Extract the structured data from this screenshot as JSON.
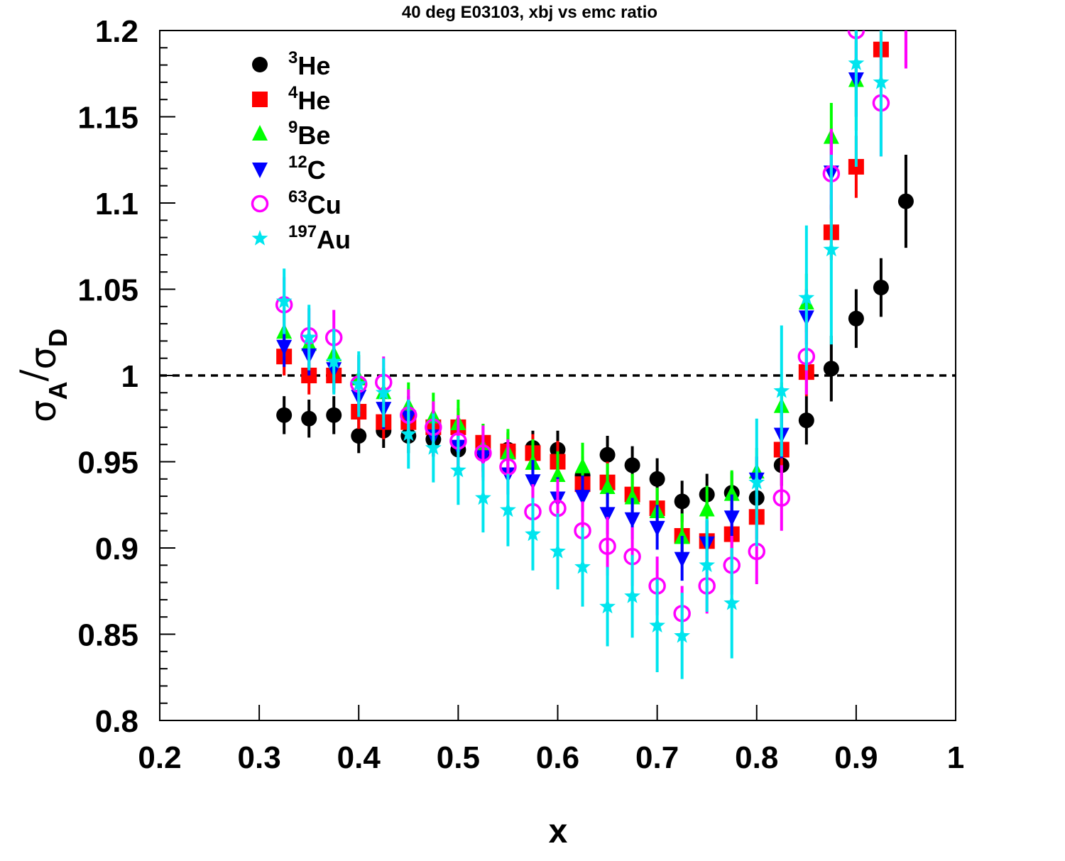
{
  "chart_data": {
    "type": "scatter",
    "title": "40 deg E03103, xbj vs emc ratio",
    "xlabel": "x",
    "ylabel": {
      "base": "σ",
      "num_sub": "A",
      "slash": "/",
      "den_sub": "D"
    },
    "xlim": [
      0.2,
      1.0
    ],
    "ylim": [
      0.8,
      1.2
    ],
    "xticks": [
      "0.2",
      "0.3",
      "0.4",
      "0.5",
      "0.6",
      "0.7",
      "0.8",
      "0.9",
      "1"
    ],
    "yticks": [
      "0.8",
      "0.85",
      "0.9",
      "0.95",
      "1",
      "1.05",
      "1.1",
      "1.15",
      "1.2"
    ],
    "reference_line": {
      "y": 1.0,
      "style": "dashed"
    },
    "legend_position": "top-left",
    "series": [
      {
        "name": {
          "sup": "3",
          "text": "He"
        },
        "marker": "circle-filled",
        "color": "#000000",
        "x": [
          0.325,
          0.35,
          0.375,
          0.4,
          0.425,
          0.45,
          0.475,
          0.5,
          0.525,
          0.55,
          0.575,
          0.6,
          0.625,
          0.65,
          0.675,
          0.7,
          0.725,
          0.75,
          0.775,
          0.8,
          0.825,
          0.85,
          0.875,
          0.9,
          0.925,
          0.95
        ],
        "y": [
          0.977,
          0.975,
          0.977,
          0.965,
          0.968,
          0.965,
          0.963,
          0.957,
          0.955,
          0.957,
          0.958,
          0.957,
          0.942,
          0.954,
          0.948,
          0.94,
          0.927,
          0.931,
          0.932,
          0.929,
          0.948,
          0.974,
          1.004,
          1.033,
          1.051,
          1.101
        ],
        "err": [
          0.011,
          0.011,
          0.011,
          0.01,
          0.01,
          0.01,
          0.01,
          0.01,
          0.01,
          0.01,
          0.01,
          0.011,
          0.011,
          0.011,
          0.011,
          0.012,
          0.012,
          0.012,
          0.012,
          0.012,
          0.012,
          0.014,
          0.019,
          0.017,
          0.017,
          0.027
        ]
      },
      {
        "name": {
          "sup": "4",
          "text": "He"
        },
        "marker": "square-filled",
        "color": "#ff0000",
        "x": [
          0.325,
          0.35,
          0.375,
          0.4,
          0.425,
          0.45,
          0.475,
          0.5,
          0.525,
          0.55,
          0.575,
          0.6,
          0.625,
          0.65,
          0.675,
          0.7,
          0.725,
          0.75,
          0.775,
          0.8,
          0.825,
          0.85,
          0.875,
          0.9,
          0.925,
          0.95
        ],
        "y": [
          1.011,
          1.0,
          1.0,
          0.979,
          0.973,
          0.973,
          0.97,
          0.97,
          0.961,
          0.956,
          0.955,
          0.95,
          0.937,
          0.938,
          0.931,
          0.923,
          0.907,
          0.904,
          0.908,
          0.918,
          0.957,
          1.002,
          1.083,
          1.121,
          1.189,
          1.212
        ],
        "err": [
          0.011,
          0.011,
          0.01,
          0.01,
          0.01,
          0.01,
          0.01,
          0.011,
          0.011,
          0.011,
          0.011,
          0.012,
          0.012,
          0.012,
          0.012,
          0.012,
          0.012,
          0.012,
          0.013,
          0.013,
          0.013,
          0.014,
          0.016,
          0.018,
          0.02,
          0.033
        ]
      },
      {
        "name": {
          "sup": "9",
          "text": "Be"
        },
        "marker": "triangle-up-filled",
        "color": "#00ff00",
        "x": [
          0.325,
          0.35,
          0.375,
          0.4,
          0.425,
          0.45,
          0.475,
          0.5,
          0.525,
          0.55,
          0.575,
          0.6,
          0.625,
          0.65,
          0.675,
          0.7,
          0.725,
          0.75,
          0.775,
          0.8,
          0.825,
          0.85,
          0.875,
          0.9
        ],
        "y": [
          1.025,
          1.018,
          1.012,
          0.998,
          0.99,
          0.982,
          0.976,
          0.972,
          0.958,
          0.955,
          0.949,
          0.942,
          0.947,
          0.935,
          0.929,
          0.921,
          0.906,
          0.922,
          0.931,
          0.944,
          0.982,
          1.042,
          1.138,
          1.171
        ],
        "err": [
          0.014,
          0.014,
          0.014,
          0.014,
          0.014,
          0.014,
          0.014,
          0.014,
          0.014,
          0.014,
          0.014,
          0.014,
          0.014,
          0.014,
          0.014,
          0.014,
          0.014,
          0.014,
          0.014,
          0.014,
          0.014,
          0.017,
          0.02,
          0.029
        ]
      },
      {
        "name": {
          "sup": "12",
          "text": "C"
        },
        "marker": "triangle-down-filled",
        "color": "#0000ff",
        "x": [
          0.325,
          0.35,
          0.375,
          0.4,
          0.425,
          0.45,
          0.475,
          0.5,
          0.525,
          0.55,
          0.575,
          0.6,
          0.625,
          0.65,
          0.675,
          0.7,
          0.725,
          0.75,
          0.775,
          0.8,
          0.825,
          0.85,
          0.875,
          0.9
        ],
        "y": [
          1.017,
          1.012,
          1.004,
          0.988,
          0.981,
          0.976,
          0.965,
          0.959,
          0.953,
          0.943,
          0.939,
          0.929,
          0.93,
          0.92,
          0.917,
          0.912,
          0.894,
          0.903,
          0.918,
          0.94,
          0.966,
          1.034,
          1.118,
          1.172
        ],
        "err": [
          0.012,
          0.012,
          0.012,
          0.012,
          0.012,
          0.012,
          0.012,
          0.012,
          0.012,
          0.012,
          0.012,
          0.012,
          0.012,
          0.012,
          0.012,
          0.013,
          0.013,
          0.013,
          0.013,
          0.013,
          0.014,
          0.016,
          0.022,
          0.022
        ]
      },
      {
        "name": {
          "sup": "63",
          "text": "Cu"
        },
        "marker": "circle-open",
        "color": "#ff00ff",
        "x": [
          0.325,
          0.35,
          0.375,
          0.4,
          0.425,
          0.45,
          0.475,
          0.5,
          0.525,
          0.55,
          0.575,
          0.6,
          0.625,
          0.65,
          0.675,
          0.7,
          0.725,
          0.75,
          0.775,
          0.8,
          0.825,
          0.85,
          0.875,
          0.9,
          0.925,
          0.95
        ],
        "y": [
          1.041,
          1.023,
          1.022,
          0.995,
          0.996,
          0.977,
          0.97,
          0.962,
          0.955,
          0.947,
          0.921,
          0.923,
          0.91,
          0.901,
          0.895,
          0.878,
          0.862,
          0.878,
          0.89,
          0.898,
          0.929,
          1.011,
          1.117,
          1.2,
          1.158,
          1.205
        ],
        "err": [
          0.016,
          0.016,
          0.016,
          0.016,
          0.015,
          0.015,
          0.015,
          0.015,
          0.016,
          0.016,
          0.016,
          0.017,
          0.017,
          0.017,
          0.017,
          0.017,
          0.016,
          0.016,
          0.017,
          0.019,
          0.019,
          0.022,
          0.026,
          0.029,
          0.031,
          0.027
        ]
      },
      {
        "name": {
          "sup": "197",
          "text": "Au"
        },
        "marker": "star-filled",
        "color": "#00e5ee",
        "x": [
          0.325,
          0.35,
          0.375,
          0.4,
          0.425,
          0.45,
          0.475,
          0.5,
          0.525,
          0.55,
          0.575,
          0.6,
          0.625,
          0.65,
          0.675,
          0.7,
          0.725,
          0.75,
          0.775,
          0.8,
          0.825,
          0.85,
          0.875,
          0.9,
          0.925
        ],
        "y": [
          1.043,
          1.022,
          1.008,
          0.995,
          0.99,
          0.966,
          0.958,
          0.945,
          0.929,
          0.922,
          0.908,
          0.898,
          0.889,
          0.866,
          0.872,
          0.855,
          0.849,
          0.89,
          0.868,
          0.938,
          0.991,
          1.045,
          1.073,
          1.181,
          1.17
        ],
        "err": [
          0.019,
          0.019,
          0.019,
          0.019,
          0.02,
          0.02,
          0.02,
          0.02,
          0.02,
          0.021,
          0.021,
          0.022,
          0.023,
          0.023,
          0.024,
          0.027,
          0.025,
          0.027,
          0.032,
          0.037,
          0.038,
          0.042,
          0.055,
          0.06,
          0.043
        ]
      }
    ]
  }
}
